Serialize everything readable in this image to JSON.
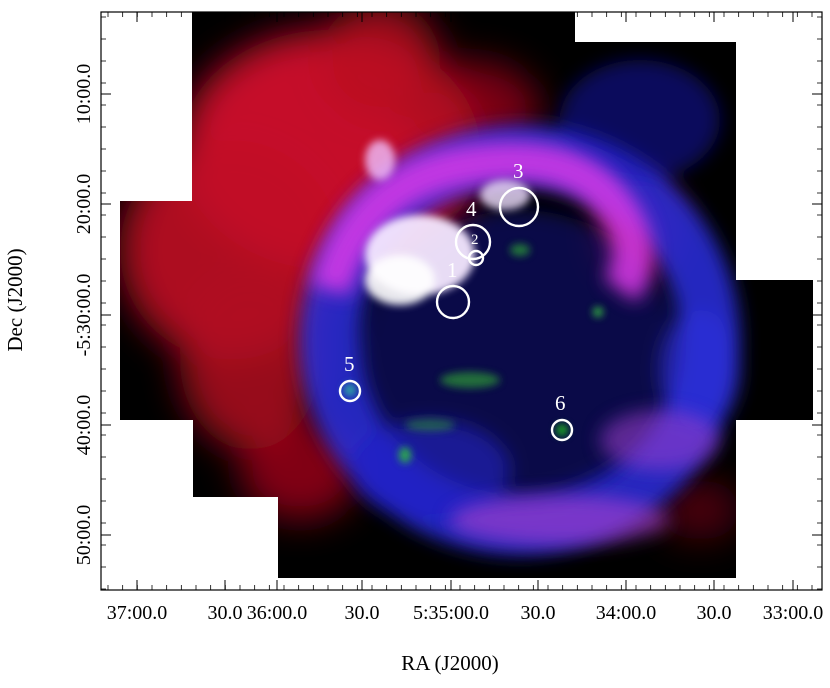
{
  "axes": {
    "x_title": "RA (J2000)",
    "y_title": "Dec (J2000)",
    "x_ticks": [
      "37:00.0",
      "30.0",
      "36:00.0",
      "30.0",
      "5:35:00.0",
      "30.0",
      "34:00.0",
      "30.0",
      "33:00.0"
    ],
    "y_ticks": [
      "10:00.0",
      "20:00.0",
      "-5:30:00.0",
      "40:00.0",
      "50:00.0"
    ]
  },
  "regions": [
    {
      "label": "1",
      "color": "#ffffff"
    },
    {
      "label": "2",
      "color": "#ffffff"
    },
    {
      "label": "3",
      "color": "#ffffff"
    },
    {
      "label": "4",
      "color": "#ffffff"
    },
    {
      "label": "5",
      "color": "#ffffff"
    },
    {
      "label": "6",
      "color": "#ffffff"
    }
  ],
  "colors": {
    "red_channel": "#e0102a",
    "blue_channel": "#2a2ae8",
    "magenta": "#d23ae0",
    "green_channel": "#30c030",
    "background": "#000000",
    "frame": "#000000"
  }
}
